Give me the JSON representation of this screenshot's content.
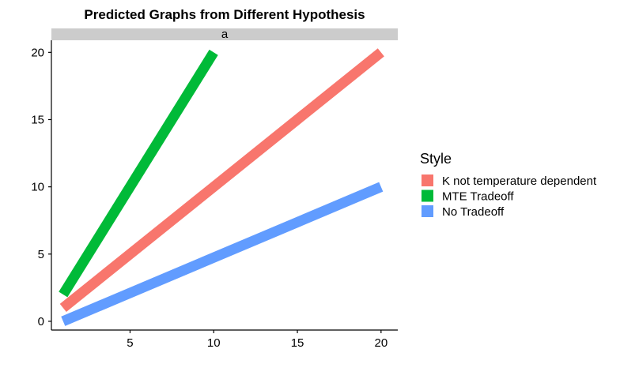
{
  "chart_data": {
    "type": "line",
    "title": "Predicted Graphs from Different Hypothesis",
    "facet_label": "a",
    "xlabel": "",
    "ylabel": "",
    "xlim": [
      0.3,
      21.0
    ],
    "ylim": [
      -0.65,
      20.9
    ],
    "x_ticks": [
      5,
      10,
      15,
      20
    ],
    "y_ticks": [
      0,
      5,
      10,
      15,
      20
    ],
    "grid": false,
    "legend": {
      "title": "Style",
      "position": "right"
    },
    "series": [
      {
        "name": "K not temperature dependent",
        "color": "#F8766D",
        "x": [
          1,
          20
        ],
        "y": [
          1,
          20
        ]
      },
      {
        "name": "MTE Tradeoff",
        "color": "#00BA38",
        "x": [
          1,
          10
        ],
        "y": [
          2,
          20
        ]
      },
      {
        "name": "No Tradeoff",
        "color": "#619CFF",
        "x": [
          1,
          20
        ],
        "y": [
          0,
          10
        ]
      }
    ]
  }
}
